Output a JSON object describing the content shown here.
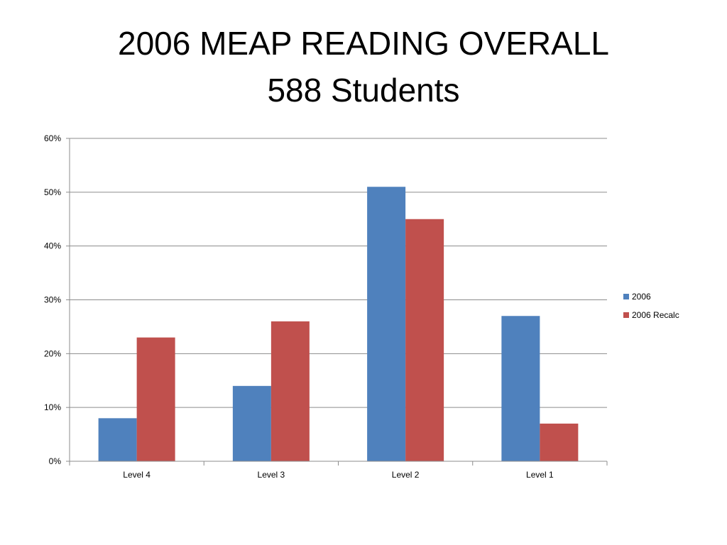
{
  "slide": {
    "title_line1": "2006 MEAP READING OVERALL",
    "title_line2": "588 Students"
  },
  "chart_data": {
    "type": "bar",
    "categories": [
      "Level 4",
      "Level 3",
      "Level 2",
      "Level 1"
    ],
    "series": [
      {
        "name": "2006",
        "color": "#4F81BD",
        "values": [
          8,
          14,
          51,
          27
        ]
      },
      {
        "name": "2006 Recalc",
        "color": "#C0504D",
        "values": [
          23,
          26,
          45,
          7
        ]
      }
    ],
    "ylim": [
      0,
      60
    ],
    "yticks": [
      0,
      10,
      20,
      30,
      40,
      50,
      60
    ],
    "ytick_labels": [
      "0%",
      "10%",
      "20%",
      "30%",
      "40%",
      "50%",
      "60%"
    ],
    "grid": true,
    "legend_position": "right",
    "xlabel": "",
    "ylabel": ""
  }
}
